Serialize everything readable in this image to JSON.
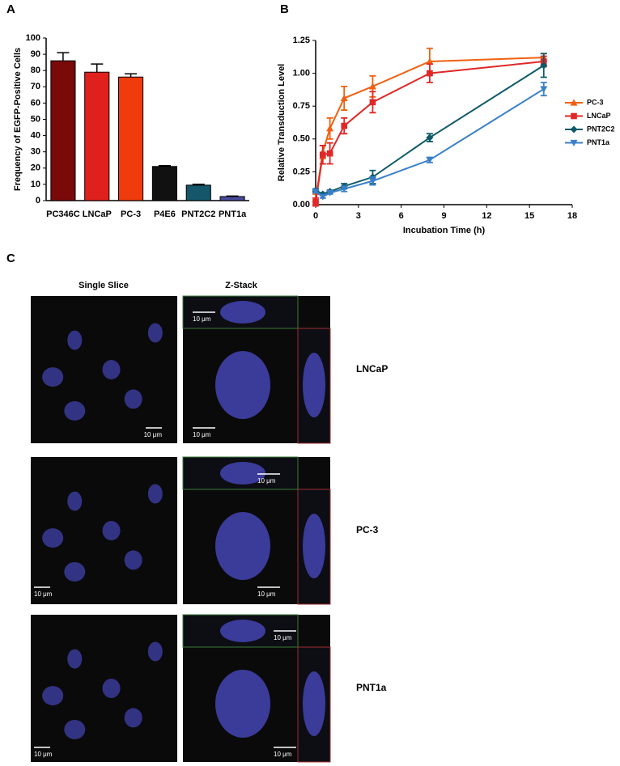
{
  "chart_data": [
    {
      "type": "bar",
      "panel": "A",
      "y_label": "Frequency of EGFP-Positive Cells",
      "categories": [
        "PC346C",
        "LNCaP",
        "PC-3",
        "P4E6",
        "PNT2C2",
        "PNT1a"
      ],
      "category_colors": [
        "#e0201c",
        "#e0201c",
        "#e0201c",
        "#111111",
        "#1a2a7a",
        "#1a2a7a"
      ],
      "values": [
        86,
        79,
        76,
        21,
        9.5,
        2.5
      ],
      "errors": [
        5,
        5,
        2,
        0.5,
        0.5,
        0.3
      ],
      "colors": [
        "#7a0a0a",
        "#e0201c",
        "#f03c0c",
        "#111111",
        "#14566a",
        "#4b4b9b"
      ],
      "ylim": [
        0,
        100
      ],
      "yticks": [
        0,
        10,
        20,
        30,
        40,
        50,
        60,
        70,
        80,
        90,
        100
      ]
    },
    {
      "type": "line",
      "panel": "B",
      "x_label": "Incubation Time (h)",
      "y_label": "Relative Transduction Level",
      "x": [
        0,
        0.5,
        1,
        2,
        4,
        8,
        16
      ],
      "series": [
        {
          "name": "PC-3",
          "color": "#f06010",
          "marker": "triangle-up",
          "values": [
            0.04,
            0.4,
            0.58,
            0.81,
            0.9,
            1.09,
            1.12
          ],
          "errors": [
            0.04,
            0.05,
            0.08,
            0.09,
            0.08,
            0.1,
            0.03
          ]
        },
        {
          "name": "LNCaP",
          "color": "#e02828",
          "marker": "square",
          "values": [
            0.02,
            0.38,
            0.39,
            0.6,
            0.78,
            1.0,
            1.09
          ],
          "errors": [
            0.03,
            0.07,
            0.08,
            0.06,
            0.08,
            0.07,
            0.04
          ]
        },
        {
          "name": "PNT2C2",
          "color": "#0e5a6a",
          "marker": "diamond",
          "values": [
            0.11,
            0.08,
            0.1,
            0.14,
            0.21,
            0.51,
            1.06
          ],
          "errors": [
            0.01,
            0.01,
            0.01,
            0.02,
            0.05,
            0.03,
            0.09
          ]
        },
        {
          "name": "PNT1a",
          "color": "#3a80c8",
          "marker": "triangle-down",
          "values": [
            0.1,
            0.06,
            0.09,
            0.12,
            0.18,
            0.34,
            0.88
          ],
          "errors": [
            0.01,
            0.01,
            0.01,
            0.02,
            0.03,
            0.02,
            0.05
          ]
        }
      ],
      "xlim": [
        0,
        18
      ],
      "xticks": [
        0,
        3,
        6,
        9,
        12,
        15,
        18
      ],
      "ylim": [
        0,
        1.25
      ],
      "yticks": [
        {
          "value": 0,
          "label": "0.00"
        },
        {
          "value": 0.25,
          "label": "0.25"
        },
        {
          "value": 0.5,
          "label": "0.50"
        },
        {
          "value": 0.75,
          "label": "0.75"
        },
        {
          "value": 1,
          "label": "1.00"
        },
        {
          "value": 1.25,
          "label": "1.25"
        }
      ]
    }
  ],
  "panel_c": {
    "label": "C",
    "columns": [
      "Single Slice",
      "Z-Stack"
    ],
    "rows": [
      {
        "label": "LNCaP",
        "color": "#e0201c",
        "scale_labels": [
          "10 μm",
          "10 μm",
          "10 μm"
        ]
      },
      {
        "label": "PC-3",
        "color": "#e0201c",
        "scale_labels": [
          "10 μm",
          "10 μm",
          "10 μm"
        ]
      },
      {
        "label": "PNT1a",
        "color": "#1a2a7a",
        "scale_labels": [
          "10 μm",
          "10 μm",
          "10 μm"
        ]
      }
    ]
  }
}
